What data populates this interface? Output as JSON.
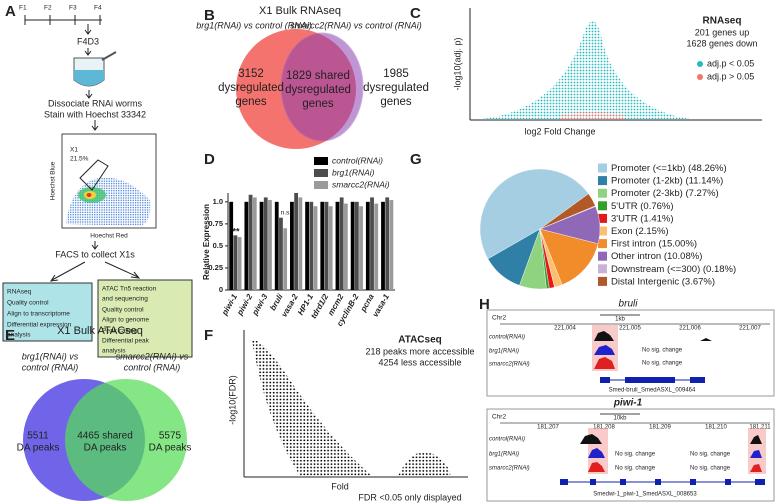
{
  "panels": {
    "A": {
      "label": "A",
      "timeline": [
        "F1",
        "F2",
        "F3",
        "F4"
      ],
      "time_point": "F4D3",
      "steps": [
        "Dissociate RNAi worms",
        "Stain with Hoechst 33342"
      ],
      "gate": "X1",
      "gate_percent": "21.5%",
      "y_axis": "Hoechst Blue",
      "x_axis": "Hoechst Red",
      "collect": "FACS to collect X1s",
      "rnaseq_steps": [
        "RNAseq",
        "Quality control",
        "Align to transcriptome",
        "Differential expression",
        "analysis"
      ],
      "atac_steps": [
        "ATAC Tn5 reaction",
        "and sequencing",
        "Quality control",
        "Align to genome",
        "Peak calling",
        "Differential peak",
        "analysis"
      ]
    },
    "B": {
      "label": "B",
      "title": "X1 Bulk RNAseq",
      "comparisons": [
        "brg1(RNAi) vs control (RNAi)",
        "smarcc2(RNAi) vs control (RNAi)"
      ],
      "left": [
        "3152",
        "dysregulated",
        "genes"
      ],
      "shared": [
        "1829 shared",
        "dysregulated",
        "genes"
      ],
      "right": [
        "1985",
        "dysregulated",
        "genes"
      ]
    },
    "C": {
      "label": "C",
      "y_axis": "-log10(adj. p)",
      "x_axis": "log2 Fold Change",
      "title": "RNAseq",
      "notes": [
        "201 genes up",
        "1628 genes down"
      ],
      "legend": [
        {
          "name": "adj.p < 0.05",
          "color": "#1fbcc4"
        },
        {
          "name": "adj.p > 0.05",
          "color": "#f6736d"
        }
      ]
    },
    "D": {
      "label": "D"
    },
    "E": {
      "label": "E",
      "title": "X1 Bulk ATACseq",
      "comparisons": [
        [
          "brg1(RNAi) vs",
          "control (RNAi)"
        ],
        [
          "smarcc2(RNAi) vs",
          "control (RNAi)"
        ]
      ],
      "left": [
        "5511",
        "DA peaks"
      ],
      "shared": [
        "4465 shared",
        "DA peaks"
      ],
      "right": [
        "5575",
        "DA peaks"
      ]
    },
    "F": {
      "label": "F",
      "y_axis": "-log10(FDR)",
      "x_axis": "Fold",
      "title": "ATACseq",
      "notes": [
        "218 peaks more accessible",
        "4254 less accessible"
      ],
      "footnote": "FDR <0.05 only displayed"
    },
    "G": {
      "label": "G"
    },
    "H": {
      "label": "H",
      "loci": [
        {
          "gene": "bruli",
          "chrom": "Chr2",
          "scale": "1kb",
          "coords": [
            "221,004",
            "221,005",
            "221,006",
            "221,007"
          ],
          "samples": [
            "control(RNAi)",
            "brg1(RNAi)",
            "smarcc2(RNAi)"
          ],
          "notes": [
            "No sig. change",
            "No sig. change"
          ],
          "transcript": "Smed-bruli_SmedASXL_009464"
        },
        {
          "gene": "piwi-1",
          "chrom": "Chr2",
          "scale": "10kb",
          "coords": [
            "181,207",
            "181,208",
            "181,209",
            "181,210",
            "181,211"
          ],
          "samples": [
            "control(RNAi)",
            "brg1(RNAi)",
            "smarcc2(RNAi)"
          ],
          "notes": [
            "No sig. change",
            "No sig. change",
            "No sig. change",
            "No sig. change"
          ],
          "transcript": "Smedwi-1_piwi-1_SmedASXL_008653"
        }
      ]
    }
  },
  "chart_data": [
    {
      "type": "bar",
      "y_label": "Relative Expression",
      "categories": [
        "piwi-1",
        "piwi-2",
        "piwi-3",
        "bruli",
        "vasa-2",
        "HP1-1",
        "tdrd1/2",
        "mcm2",
        "cyclinB-2",
        "pcna",
        "vasa-1"
      ],
      "series": [
        {
          "name": "control(RNAi)",
          "color": "#000000",
          "values": [
            1,
            1,
            1,
            1,
            1,
            1,
            1,
            1,
            1,
            1,
            1
          ]
        },
        {
          "name": "brg1(RNAi)",
          "color": "#4d4d4d",
          "values": [
            0.62,
            1.08,
            1.05,
            0.82,
            1.1,
            1.0,
            1.0,
            1.05,
            1.0,
            1.05,
            1.05
          ]
        },
        {
          "name": "smarcc2(RNAi)",
          "color": "#9a9a9a",
          "values": [
            0.6,
            1.05,
            1.02,
            0.7,
            1.05,
            0.95,
            0.95,
            0.98,
            0.95,
            0.98,
            1.02
          ]
        }
      ],
      "ylim": [
        0,
        1.1
      ],
      "yticks": [
        0,
        0.25,
        0.5,
        0.75,
        {
          "value": 1,
          "label": "1.0"
        }
      ],
      "annotations": [
        "**",
        "n.s."
      ]
    },
    {
      "type": "pie",
      "categories": [
        "Promoter (<=1kb)",
        "Promoter (1-2kb)",
        "Promoter (2-3kb)",
        "5'UTR",
        "3'UTR",
        "Exon",
        "First intron",
        "Other intron",
        "Downstream (<=300)",
        "Distal Intergenic"
      ],
      "values": [
        48.26,
        11.14,
        7.27,
        0.76,
        1.41,
        2.15,
        15.0,
        10.08,
        0.18,
        3.67
      ],
      "value_labels": [
        "(48.26%)",
        "(11.14%)",
        "(7.27%)",
        "(0.76%)",
        "(1.41%)",
        "(2.15%)",
        "(15.00%)",
        "(10.08%)",
        "(0.18%)",
        "(3.67%)"
      ],
      "colors": [
        "#a6cee3",
        "#2f7fa6",
        "#8fd27f",
        "#33a02c",
        "#e31a1c",
        "#fdbf6f",
        "#f08c2a",
        "#8f68b8",
        "#cab2d6",
        "#b15928"
      ]
    }
  ]
}
